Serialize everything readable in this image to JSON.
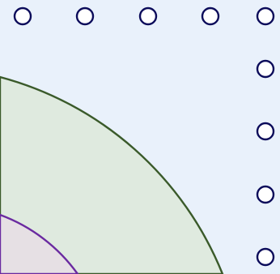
{
  "background_color": "#e9f1fb",
  "zones": [
    {
      "fill": "#dfeadf",
      "stroke": "#3a5a2a",
      "label": ""
    },
    {
      "fill": "#e6e0e4",
      "stroke": "#6a2aa0",
      "label": ""
    }
  ],
  "markers": {
    "count": 9,
    "fill": "#ffffff",
    "stroke": "#0b0b5a",
    "shape": "hollow-circle"
  }
}
